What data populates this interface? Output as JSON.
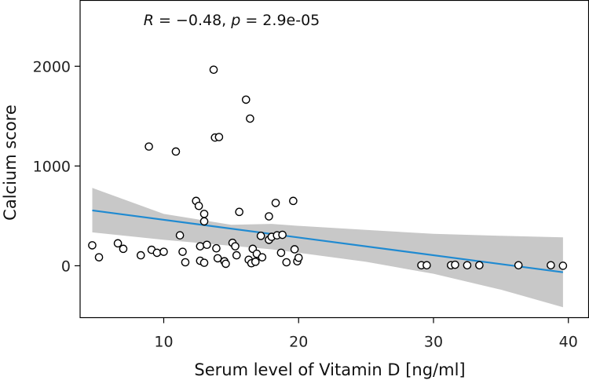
{
  "chart_data": {
    "type": "scatter",
    "title": "",
    "xlabel": "Serum level of Vitamin D [ng/ml]",
    "ylabel": "Calcium score",
    "xlim": [
      3.8,
      41.5
    ],
    "ylim": [
      -520,
      2660
    ],
    "xticks": [
      10,
      20,
      30,
      40
    ],
    "xtick_labels": [
      "10",
      "20",
      "30",
      "40"
    ],
    "yticks": [
      0,
      1000,
      2000
    ],
    "ytick_labels": [
      "0",
      "1000",
      "2000"
    ],
    "grid": false,
    "annotation": {
      "text": "R = −0.48, p = 2.9e-05",
      "r_label": "R",
      "r_value": " = −0.48, ",
      "p_label": "p",
      "p_value": " = 2.9e-05",
      "position": "top-center"
    },
    "regression": {
      "color": "#1f8ad1",
      "band_color": "#c8c8c8",
      "x": [
        4.7,
        39.6
      ],
      "fit": [
        555,
        -65
      ],
      "band_x": [
        4.7,
        10,
        15,
        18,
        20,
        25,
        30,
        35,
        39.6
      ],
      "band_lower": [
        335,
        260,
        200,
        165,
        130,
        40,
        -80,
        -240,
        -415
      ],
      "band_upper": [
        780,
        520,
        410,
        420,
        400,
        360,
        320,
        300,
        285
      ]
    },
    "points": [
      {
        "x": 4.7,
        "y": 205
      },
      {
        "x": 5.2,
        "y": 85
      },
      {
        "x": 6.6,
        "y": 225
      },
      {
        "x": 7.0,
        "y": 170
      },
      {
        "x": 8.3,
        "y": 105
      },
      {
        "x": 8.9,
        "y": 1195
      },
      {
        "x": 9.1,
        "y": 160
      },
      {
        "x": 9.5,
        "y": 130
      },
      {
        "x": 10.0,
        "y": 140
      },
      {
        "x": 10.9,
        "y": 1145
      },
      {
        "x": 11.2,
        "y": 305
      },
      {
        "x": 11.4,
        "y": 140
      },
      {
        "x": 11.6,
        "y": 35
      },
      {
        "x": 12.4,
        "y": 650
      },
      {
        "x": 12.6,
        "y": 600
      },
      {
        "x": 12.7,
        "y": 195
      },
      {
        "x": 12.7,
        "y": 50
      },
      {
        "x": 13.0,
        "y": 520
      },
      {
        "x": 13.0,
        "y": 445
      },
      {
        "x": 13.0,
        "y": 30
      },
      {
        "x": 13.2,
        "y": 210
      },
      {
        "x": 13.7,
        "y": 1965
      },
      {
        "x": 13.8,
        "y": 1285
      },
      {
        "x": 13.9,
        "y": 175
      },
      {
        "x": 14.0,
        "y": 75
      },
      {
        "x": 14.1,
        "y": 1290
      },
      {
        "x": 14.5,
        "y": 45
      },
      {
        "x": 14.6,
        "y": 20
      },
      {
        "x": 15.1,
        "y": 230
      },
      {
        "x": 15.3,
        "y": 195
      },
      {
        "x": 15.4,
        "y": 105
      },
      {
        "x": 15.6,
        "y": 540
      },
      {
        "x": 16.1,
        "y": 1665
      },
      {
        "x": 16.3,
        "y": 60
      },
      {
        "x": 16.4,
        "y": 1475
      },
      {
        "x": 16.6,
        "y": 170
      },
      {
        "x": 16.5,
        "y": 25
      },
      {
        "x": 16.8,
        "y": 40
      },
      {
        "x": 16.9,
        "y": 120
      },
      {
        "x": 17.2,
        "y": 300
      },
      {
        "x": 17.3,
        "y": 85
      },
      {
        "x": 17.8,
        "y": 495
      },
      {
        "x": 17.8,
        "y": 260
      },
      {
        "x": 18.0,
        "y": 290
      },
      {
        "x": 18.3,
        "y": 630
      },
      {
        "x": 18.4,
        "y": 305
      },
      {
        "x": 18.7,
        "y": 130
      },
      {
        "x": 18.8,
        "y": 310
      },
      {
        "x": 19.1,
        "y": 35
      },
      {
        "x": 19.6,
        "y": 650
      },
      {
        "x": 19.7,
        "y": 165
      },
      {
        "x": 19.9,
        "y": 45
      },
      {
        "x": 20.0,
        "y": 80
      },
      {
        "x": 29.1,
        "y": 5
      },
      {
        "x": 29.5,
        "y": 5
      },
      {
        "x": 31.3,
        "y": 5
      },
      {
        "x": 31.6,
        "y": 10
      },
      {
        "x": 32.5,
        "y": 5
      },
      {
        "x": 33.4,
        "y": 5
      },
      {
        "x": 36.3,
        "y": 5
      },
      {
        "x": 38.7,
        "y": 5
      },
      {
        "x": 39.6,
        "y": 0
      }
    ]
  }
}
